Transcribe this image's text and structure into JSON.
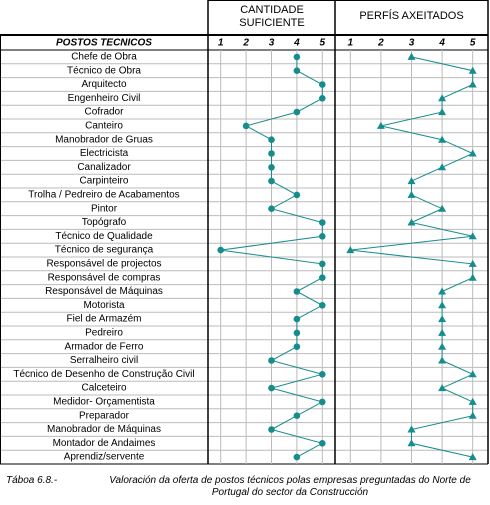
{
  "chart_data": {
    "type": "line",
    "y_label": "POSTOS TECNICOS",
    "categories": [
      "Chefe de Obra",
      "Técnico de Obra",
      "Arquitecto",
      "Engenheiro Civil",
      "Cofrador",
      "Canteiro",
      "Manobrador de Gruas",
      "Electricista",
      "Canalizador",
      "Carpinteiro",
      "Trolha / Pedreiro de Acabamentos",
      "Pintor",
      "Topógrafo",
      "Técnico de Qualidade",
      "Técnico de segurança",
      "Responsável de projectos",
      "Responsável de compras",
      "Responsável de Máquinas",
      "Motorista",
      "Fiel de Armazém",
      "Pedreiro",
      "Armador de Ferro",
      "Serralheiro civil",
      "Técnico de Desenho de Construção Civil",
      "Calceteiro",
      "Medidor- Orçamentista",
      "Preparador",
      "Manobrador de Máquinas",
      "Montador de Andaimes",
      "Aprendiz/servente"
    ],
    "series": [
      {
        "name": "CANTIDADE SUFICIENTE",
        "color": "#168c8c",
        "marker": "circle",
        "values": [
          4,
          4,
          5,
          5,
          4,
          2,
          3,
          3,
          3,
          3,
          4,
          3,
          5,
          5,
          1,
          5,
          5,
          4,
          5,
          4,
          4,
          4,
          3,
          5,
          3,
          5,
          4,
          3,
          5,
          4
        ]
      },
      {
        "name": "PERFÍS AXEITADOS",
        "color": "#168c8c",
        "marker": "triangle",
        "values": [
          3,
          5,
          5,
          4,
          4,
          2,
          4,
          5,
          4,
          3,
          3,
          4,
          3,
          5,
          1,
          5,
          5,
          4,
          4,
          4,
          4,
          4,
          4,
          5,
          4,
          5,
          5,
          3,
          3,
          5
        ]
      }
    ],
    "xlim": [
      0.5,
      5.5
    ],
    "xticks": [
      1,
      2,
      3,
      4,
      5
    ],
    "grid": true,
    "caption_label": "Táboa 6.8.-",
    "caption": "Valoración da oferta de postos técnicos polas empresas preguntadas do Norte de Portugal do sector da Construcción"
  }
}
